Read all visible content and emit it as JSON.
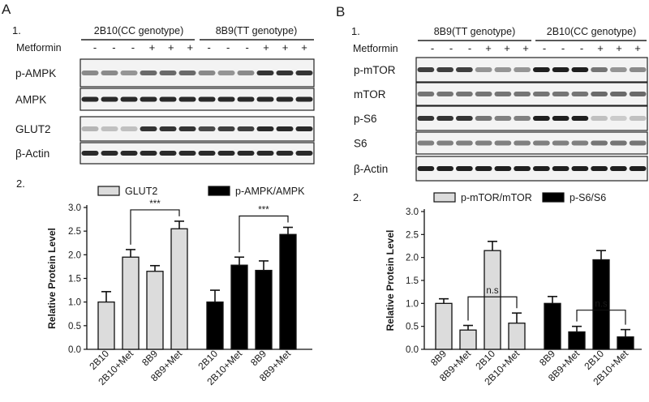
{
  "panel_a": {
    "letter": "A",
    "blot_number": "1.",
    "chart_number": "2.",
    "genotype_left": "2B10(CC genotype)",
    "genotype_right": "8B9(TT genotype)",
    "metformin_label": "Metformin",
    "treatment_signs": [
      "-",
      "-",
      "-",
      "+",
      "+",
      "+",
      "-",
      "-",
      "-",
      "+",
      "+",
      "+"
    ],
    "blot_labels": [
      "p-AMPK",
      "AMPK",
      "GLUT2",
      "β-Actin"
    ]
  },
  "panel_b": {
    "letter": "B",
    "blot_number": "1.",
    "chart_number": "2.",
    "genotype_left": "8B9(TT genotype)",
    "genotype_right": "2B10(CC genotype)",
    "metformin_label": "Metformin",
    "treatment_signs": [
      "-",
      "-",
      "-",
      "+",
      "+",
      "+",
      "-",
      "-",
      "-",
      "+",
      "+",
      "+"
    ],
    "blot_labels": [
      "p-mTOR",
      "mTOR",
      "p-S6",
      "S6",
      "β-Actin"
    ]
  },
  "chart_data": [
    {
      "type": "bar",
      "panel": "A2",
      "ylabel": "Relative Protein Level",
      "ylim": [
        0,
        3.0
      ],
      "yticks": [
        "0.0",
        "0.5",
        "1.0",
        "1.5",
        "2.0",
        "2.5",
        "3.0"
      ],
      "groups": [
        {
          "name": "GLUT2",
          "color": "#dcdcdc",
          "categories": [
            "2B10",
            "2B10+Met",
            "8B9",
            "8B9+Met"
          ],
          "values": [
            1.0,
            1.95,
            1.65,
            2.55
          ],
          "errors": [
            0.22,
            0.16,
            0.12,
            0.16
          ]
        },
        {
          "name": "p-AMPK/AMPK",
          "color": "#000000",
          "categories": [
            "2B10",
            "2B10+Met",
            "8B9",
            "8B9+Met"
          ],
          "values": [
            1.0,
            1.78,
            1.67,
            2.43
          ],
          "errors": [
            0.25,
            0.17,
            0.2,
            0.15
          ]
        }
      ],
      "significance": [
        {
          "group": 0,
          "from": 1,
          "to": 3,
          "label": "***"
        },
        {
          "group": 1,
          "from": 1,
          "to": 3,
          "label": "***"
        }
      ],
      "legend": "top"
    },
    {
      "type": "bar",
      "panel": "B2",
      "ylabel": "Relative Protein Level",
      "ylim": [
        0,
        3.0
      ],
      "yticks": [
        "0.0",
        "0.5",
        "1.0",
        "1.5",
        "2.0",
        "2.5",
        "3.0"
      ],
      "groups": [
        {
          "name": "p-mTOR/mTOR",
          "color": "#dcdcdc",
          "categories": [
            "8B9",
            "8B9+Met",
            "2B10",
            "2B10+Met"
          ],
          "values": [
            1.0,
            0.42,
            2.15,
            0.57
          ],
          "errors": [
            0.1,
            0.1,
            0.2,
            0.22
          ]
        },
        {
          "name": "p-S6/S6",
          "color": "#000000",
          "categories": [
            "8B9",
            "8B9+Met",
            "2B10",
            "2B10+Met"
          ],
          "values": [
            1.0,
            0.38,
            1.95,
            0.27
          ],
          "errors": [
            0.15,
            0.12,
            0.2,
            0.16
          ]
        }
      ],
      "significance": [
        {
          "group": 0,
          "from": 1,
          "to": 3,
          "label": "n.s"
        },
        {
          "group": 1,
          "from": 1,
          "to": 3,
          "label": "n.s"
        }
      ],
      "legend": "top"
    }
  ]
}
